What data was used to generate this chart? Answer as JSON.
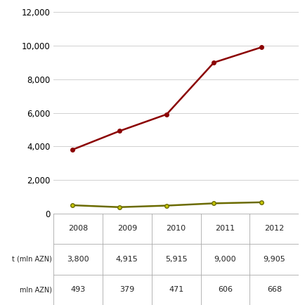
{
  "years": [
    2008,
    2009,
    2010,
    2011,
    2012
  ],
  "gdp_values": [
    3800,
    4915,
    5915,
    9000,
    9905
  ],
  "rent_values": [
    493,
    379,
    471,
    606,
    668
  ],
  "gdp_color": "#8B0000",
  "rent_color": "#6B6B00",
  "rent_marker_color": "#c8c800",
  "ylim": [
    0,
    12000
  ],
  "yticks": [
    0,
    2000,
    4000,
    6000,
    8000,
    10000,
    12000
  ],
  "background_color": "#ffffff",
  "grid_color": "#d0d0d0",
  "table_years": [
    "2008",
    "2009",
    "2010",
    "2011",
    "2012"
  ],
  "table_row1": [
    "3,800",
    "4,915",
    "5,915",
    "9,000",
    "9,905"
  ],
  "table_row2": [
    "493",
    "379",
    "471",
    "606",
    "668"
  ],
  "row1_label": "t (mln AZN)",
  "row2_label": "mln AZN)",
  "marker_size": 4,
  "linewidth": 1.8,
  "xlim_left": 2007.6,
  "xlim_right": 2012.8
}
